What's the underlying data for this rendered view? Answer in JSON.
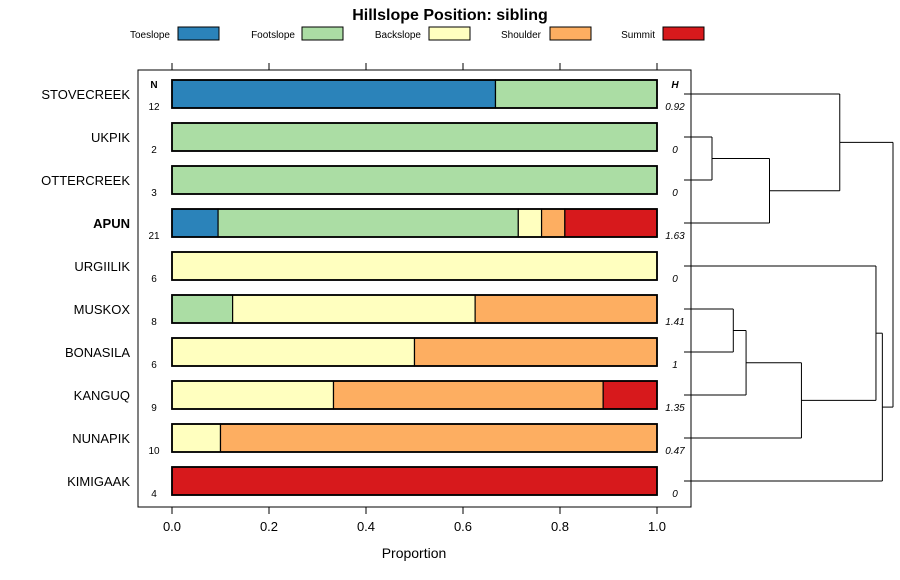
{
  "chart_data": {
    "type": "bar",
    "stacked": true,
    "orientation": "horizontal",
    "title": "Hillslope Position: sibling",
    "xlabel": "Proportion",
    "xlim": [
      0,
      1
    ],
    "x_ticks": [
      "0.0",
      "0.2",
      "0.4",
      "0.6",
      "0.8",
      "1.0"
    ],
    "x_tick_values": [
      0,
      0.2,
      0.4,
      0.6,
      0.8,
      1.0
    ],
    "n_header": "N",
    "h_header": "H",
    "legend": [
      {
        "name": "Toeslope",
        "color": "#2b83ba"
      },
      {
        "name": "Footslope",
        "color": "#abdda4"
      },
      {
        "name": "Backslope",
        "color": "#ffffbf"
      },
      {
        "name": "Shoulder",
        "color": "#fdae61"
      },
      {
        "name": "Summit",
        "color": "#d7191c"
      }
    ],
    "categories": [
      "STOVECREEK",
      "UKPIK",
      "OTTERCREEK",
      "APUN",
      "URGIILIK",
      "MUSKOX",
      "BONASILA",
      "KANGUQ",
      "NUNAPIK",
      "KIMIGAAK"
    ],
    "highlight": "APUN",
    "n": [
      "12",
      "2",
      "3",
      "21",
      "6",
      "8",
      "6",
      "9",
      "10",
      "4"
    ],
    "h": [
      "0.92",
      "0",
      "0",
      "1.63",
      "0",
      "1.41",
      "1",
      "1.35",
      "0.47",
      "0"
    ],
    "series": [
      {
        "name": "Toeslope",
        "values": [
          0.667,
          0,
          0,
          0.095,
          0,
          0,
          0,
          0,
          0,
          0
        ]
      },
      {
        "name": "Footslope",
        "values": [
          0.333,
          1,
          1,
          0.619,
          0,
          0.125,
          0,
          0,
          0,
          0
        ]
      },
      {
        "name": "Backslope",
        "values": [
          0,
          0,
          0,
          0.048,
          1,
          0.5,
          0.5,
          0.333,
          0.1,
          0
        ]
      },
      {
        "name": "Shoulder",
        "values": [
          0,
          0,
          0,
          0.048,
          0,
          0.375,
          0.5,
          0.556,
          0.9,
          0
        ]
      },
      {
        "name": "Summit",
        "values": [
          0,
          0,
          0,
          0.19,
          0,
          0,
          0,
          0.111,
          0,
          1
        ]
      }
    ],
    "dendrogram": {
      "leaves": [
        "STOVECREEK",
        "UKPIK",
        "OTTERCREEK",
        "APUN",
        "URGIILIK",
        "MUSKOX",
        "BONASILA",
        "KANGUQ",
        "NUNAPIK",
        "KIMIGAAK"
      ],
      "merges": [
        {
          "a": "UKPIK",
          "b": "OTTERCREEK",
          "height": 0.0
        },
        {
          "a": "MUSKOX",
          "b": "BONASILA",
          "height": 0.1
        },
        {
          "a": "m2",
          "b": "KANGUQ",
          "height": 0.16
        },
        {
          "a": "m1",
          "b": "APUN",
          "height": 0.27
        },
        {
          "a": "m3",
          "b": "NUNAPIK",
          "height": 0.42
        },
        {
          "a": "STOVECREEK",
          "b": "m4",
          "height": 0.6
        },
        {
          "a": "URGIILIK",
          "b": "m5",
          "height": 0.77
        },
        {
          "a": "m7",
          "b": "KIMIGAAK",
          "height": 0.8
        },
        {
          "a": "m6",
          "b": "m8",
          "height": 0.85
        }
      ]
    }
  }
}
